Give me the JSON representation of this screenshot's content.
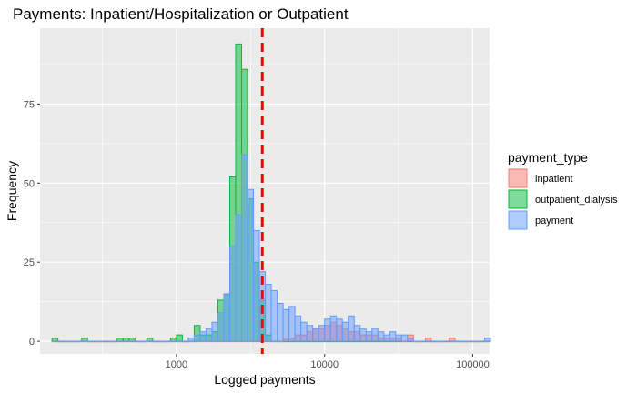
{
  "chart_data": {
    "type": "histogram",
    "title": "Payments: Inpatient/Hospitalization or Outpatient",
    "xlabel": "Logged payments",
    "ylabel": "Frequency",
    "x_scale": "log10",
    "xlim": [
      120,
      130000
    ],
    "ylim": [
      -4,
      99
    ],
    "x_ticks": [
      1000,
      10000,
      100000
    ],
    "x_tick_labels": [
      "1000",
      "10000",
      "100000"
    ],
    "y_ticks": [
      0,
      25,
      50,
      75
    ],
    "y_tick_labels": [
      "0",
      "25",
      "50",
      "75"
    ],
    "bin_width_log10": 0.04,
    "bin_start_log10": 2.16,
    "reference_line": {
      "x": 3800,
      "style": "dashed",
      "color": "#ff0000"
    },
    "legend": {
      "title": "payment_type",
      "position": "right",
      "items": [
        {
          "label": "inpatient",
          "fill": "#F8766D",
          "stroke": "#F8766D"
        },
        {
          "label": "outpatient_dialysis",
          "fill": "#00BA38",
          "stroke": "#00BA38"
        },
        {
          "label": "payment",
          "fill": "#619CFF",
          "stroke": "#619CFF"
        }
      ]
    },
    "series": [
      {
        "name": "outpatient_dialysis",
        "color": "#00BA38",
        "counts": [
          1,
          0,
          0,
          0,
          0,
          1,
          0,
          0,
          0,
          0,
          0,
          1,
          1,
          1,
          0,
          0,
          1,
          0,
          0,
          0,
          1,
          2,
          0,
          0,
          5,
          2,
          2,
          3,
          13,
          15,
          52,
          94,
          86,
          45,
          25,
          13,
          2,
          0,
          0,
          0,
          0,
          0,
          0,
          0,
          0,
          0,
          0,
          0,
          0,
          0,
          0,
          0,
          0,
          0,
          0,
          0,
          0,
          0,
          0,
          0,
          0,
          0,
          0,
          0,
          0,
          0,
          0,
          0,
          0,
          0,
          0,
          0,
          0,
          0
        ]
      },
      {
        "name": "inpatient",
        "color": "#F8766D",
        "counts": [
          0,
          0,
          0,
          0,
          0,
          0,
          0,
          0,
          0,
          0,
          0,
          0,
          0,
          0,
          0,
          0,
          0,
          0,
          0,
          0,
          0,
          0,
          0,
          0,
          0,
          0,
          0,
          0,
          0,
          0,
          0,
          0,
          0,
          0,
          0,
          0,
          0,
          0,
          0,
          1,
          1,
          2,
          2,
          3,
          4,
          4,
          5,
          6,
          5,
          4,
          3,
          3,
          2,
          2,
          2,
          1,
          1,
          1,
          1,
          0,
          2,
          0,
          0,
          1,
          0,
          0,
          0,
          1,
          0,
          0,
          0,
          0,
          0,
          0
        ]
      },
      {
        "name": "payment",
        "color": "#619CFF",
        "counts": [
          0,
          0,
          0,
          0,
          0,
          0,
          0,
          0,
          0,
          0,
          0,
          0,
          0,
          0,
          0,
          0,
          0,
          0,
          0,
          0,
          0,
          0,
          0,
          1,
          2,
          3,
          4,
          6,
          9,
          15,
          30,
          40,
          59,
          48,
          35,
          22,
          18,
          16,
          12,
          10,
          11,
          8,
          6,
          5,
          4,
          5,
          7,
          8,
          7,
          6,
          8,
          5,
          4,
          3,
          4,
          3,
          2,
          3,
          2,
          2,
          1,
          0,
          0,
          0,
          0,
          0,
          0,
          0,
          0,
          0,
          0,
          0,
          0,
          1
        ]
      }
    ]
  }
}
